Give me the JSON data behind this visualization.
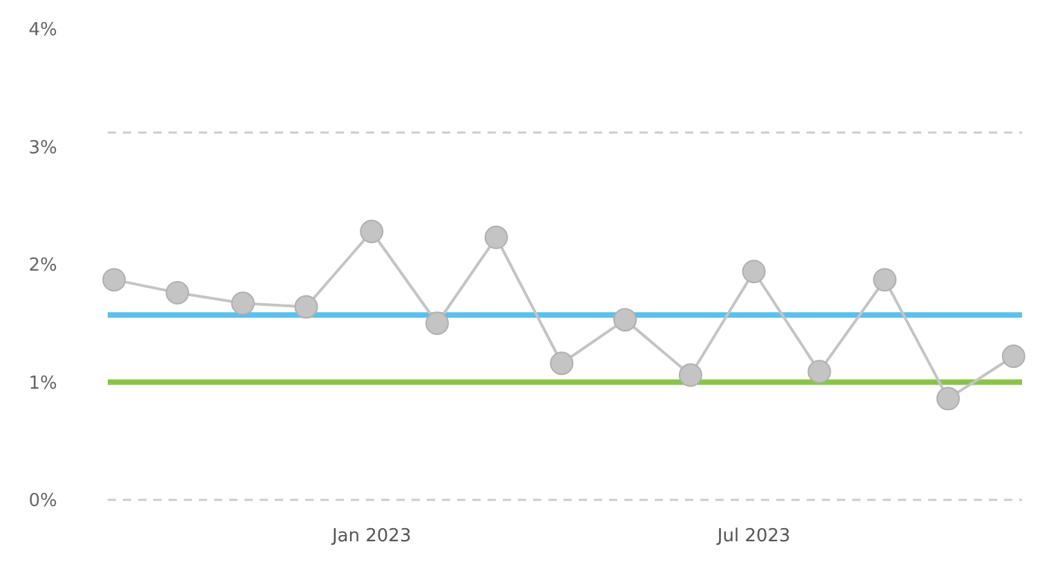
{
  "chart_data": {
    "type": "line",
    "x": [
      "2022-09",
      "2022-10",
      "2022-11",
      "2022-12",
      "2023-01",
      "2023-02",
      "2023-03",
      "2023-04",
      "2023-05",
      "2023-06",
      "2023-07",
      "2023-08",
      "2023-09",
      "2023-10",
      "2023-11"
    ],
    "series": [
      {
        "color": "#c4c4c4",
        "values": [
          1.87,
          1.76,
          1.67,
          1.64,
          2.28,
          1.5,
          2.23,
          1.16,
          1.53,
          1.06,
          1.94,
          1.09,
          1.87,
          0.86,
          1.22
        ]
      }
    ],
    "marker": "circle",
    "line_style": "solid",
    "grid": false,
    "xlim": [
      "2022-08-29",
      "2023-11-05"
    ],
    "xticks": [
      {
        "value": "2023-01",
        "label": "Jan 2023"
      },
      {
        "value": "2023-07",
        "label": "Jul 2023"
      }
    ],
    "ylim": [
      0,
      4
    ],
    "yticks": [
      {
        "value": 0,
        "label": "0%"
      },
      {
        "value": 1,
        "label": "1%"
      },
      {
        "value": 2,
        "label": "2%"
      },
      {
        "value": 3,
        "label": "3%"
      },
      {
        "value": 4,
        "label": "4%"
      }
    ],
    "ref_lines": [
      {
        "axis": "y",
        "value": 3.12,
        "color": "#cccccc",
        "line_style": "dashed"
      },
      {
        "axis": "y",
        "value": 0,
        "color": "#cccccc",
        "line_style": "dashed"
      },
      {
        "axis": "y",
        "value": 1.57,
        "color": "#5bc0eb",
        "line_style": "solid"
      },
      {
        "axis": "y",
        "value": 1.0,
        "color": "#8bc34a",
        "line_style": "solid"
      }
    ]
  }
}
